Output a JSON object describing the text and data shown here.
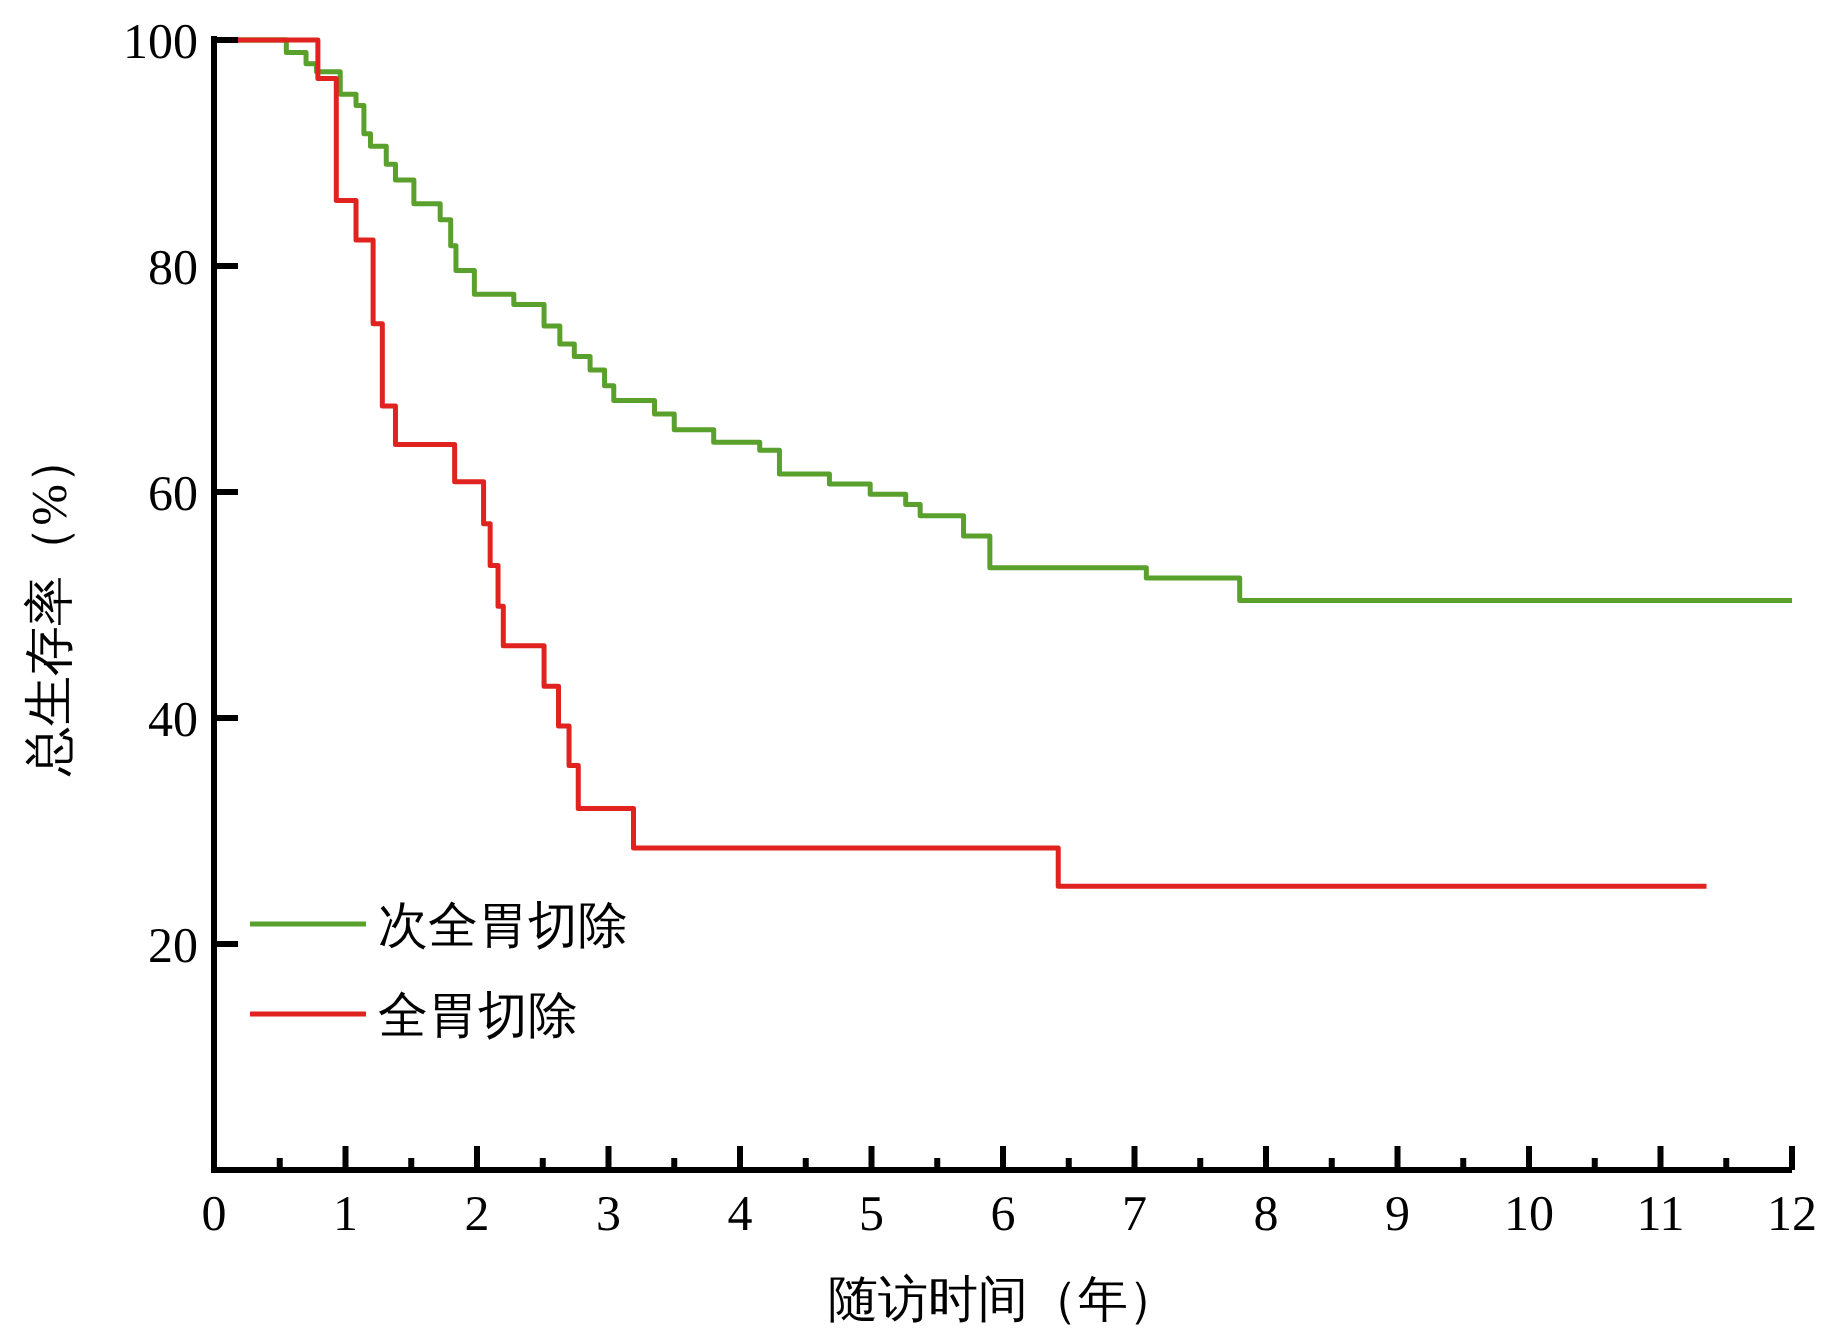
{
  "chart_data": {
    "type": "step",
    "xlabel": "随访时间（年）",
    "ylabel": "总生存率（%）",
    "xlim": [
      0,
      12
    ],
    "ylim": [
      0,
      100
    ],
    "xticks": [
      0,
      {
        "value": 0.5,
        "label": null
      },
      1,
      {
        "value": 1.5,
        "label": null
      },
      2,
      {
        "value": 2.5,
        "label": null
      },
      3,
      {
        "value": 3.5,
        "label": null
      },
      4,
      {
        "value": 4.5,
        "label": null
      },
      5,
      {
        "value": 5.5,
        "label": null
      },
      6,
      {
        "value": 6.5,
        "label": null
      },
      7,
      {
        "value": 7.5,
        "label": null
      },
      8,
      {
        "value": 8.5,
        "label": null
      },
      9,
      {
        "value": 9.5,
        "label": null
      },
      10,
      {
        "value": 10.5,
        "label": null
      },
      11,
      {
        "value": 11.5,
        "label": null
      },
      12
    ],
    "yticks": [
      20,
      40,
      60,
      80,
      100
    ],
    "grid": false,
    "legend": "bottom left",
    "line_style": "solid",
    "series": [
      {
        "name": "次全胃切除",
        "color": "#5aa02c",
        "x": [
          0,
          0.55,
          0.7,
          0.78,
          0.96,
          1.08,
          1.14,
          1.19,
          1.31,
          1.38,
          1.52,
          1.72,
          1.8,
          1.84,
          1.98,
          2.28,
          2.51,
          2.63,
          2.74,
          2.86,
          2.97,
          3.04,
          3.35,
          3.5,
          3.8,
          4.15,
          4.3,
          4.68,
          4.99,
          5.26,
          5.37,
          5.7,
          5.9,
          7.09,
          7.8,
          12
        ],
        "values": [
          100,
          98.9,
          97.9,
          97.2,
          95.2,
          94.2,
          91.7,
          90.6,
          89,
          87.6,
          85.5,
          84.1,
          81.8,
          79.6,
          77.5,
          76.6,
          74.7,
          73.1,
          72,
          70.8,
          69.4,
          68.1,
          66.9,
          65.5,
          64.4,
          63.7,
          61.6,
          60.7,
          59.8,
          58.9,
          57.9,
          56.1,
          53.3,
          52.4,
          50.4,
          50.4
        ]
      },
      {
        "name": "全胃切除",
        "color": "#e0231e",
        "x": [
          0,
          0.79,
          0.93,
          1.08,
          1.21,
          1.28,
          1.38,
          1.83,
          2.05,
          2.1,
          2.16,
          2.2,
          2.51,
          2.62,
          2.7,
          2.77,
          3.19,
          6.42,
          11.35
        ],
        "values": [
          100,
          96.6,
          85.8,
          82.3,
          74.9,
          67.6,
          64.2,
          60.9,
          57.2,
          53.5,
          49.9,
          46.4,
          42.8,
          39.3,
          35.8,
          32,
          28.5,
          25.1,
          25.1
        ]
      }
    ]
  }
}
